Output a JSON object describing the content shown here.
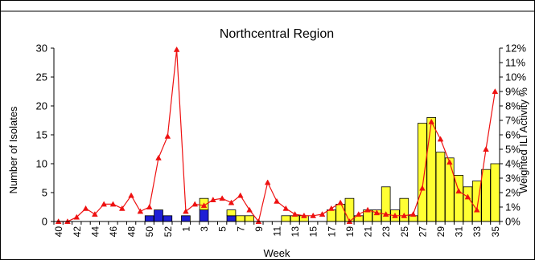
{
  "chart_data": {
    "type": "bar",
    "title": "Northcentral Region",
    "xlabel": "Week",
    "ylabel": "Number of Isolates",
    "y2label": "Weighted ILI Activity %",
    "ylim": [
      0,
      30
    ],
    "y2lim": [
      0,
      12
    ],
    "y_ticks": [
      "0",
      "5",
      "10",
      "15",
      "20",
      "25",
      "30"
    ],
    "y2_ticks": [
      "0%",
      "1%",
      "2%",
      "3%",
      "4%",
      "5%",
      "6%",
      "7%",
      "8%",
      "9%",
      "10%",
      "11%",
      "12%"
    ],
    "grid": false,
    "legend": "none",
    "categories": [
      "40",
      "41",
      "42",
      "43",
      "44",
      "45",
      "46",
      "47",
      "48",
      "49",
      "50",
      "51",
      "52",
      "53",
      "1",
      "2",
      "3",
      "4",
      "5",
      "6",
      "7",
      "8",
      "9",
      "10",
      "11",
      "12",
      "13",
      "14",
      "15",
      "16",
      "17",
      "18",
      "19",
      "20",
      "21",
      "22",
      "23",
      "24",
      "25",
      "26",
      "27",
      "28",
      "29",
      "30",
      "31",
      "32",
      "33",
      "34",
      "35"
    ],
    "series": [
      {
        "kind": "bar-stack",
        "color": "#1f1fd6",
        "values": [
          0,
          0,
          0,
          0,
          0,
          0,
          0,
          0,
          0,
          0,
          1,
          2,
          1,
          0,
          1,
          0,
          2,
          0,
          0,
          1,
          0,
          0,
          0,
          0,
          0,
          0,
          0,
          0,
          0,
          0,
          0,
          0,
          0,
          0,
          0,
          0,
          0,
          0,
          0,
          0,
          0,
          0,
          0,
          0,
          0,
          0,
          0,
          0,
          0
        ]
      },
      {
        "kind": "bar-stack",
        "color": "#ffff33",
        "values": [
          0,
          0,
          0,
          0,
          0,
          0,
          0,
          0,
          0,
          0,
          0,
          0,
          0,
          0,
          0,
          0,
          2,
          0,
          0,
          1,
          1,
          1,
          0,
          0,
          0,
          1,
          1,
          1,
          0,
          0,
          2,
          3,
          4,
          1,
          2,
          2,
          6,
          2,
          4,
          1,
          17,
          18,
          12,
          11,
          8,
          6,
          7,
          9,
          10
        ]
      },
      {
        "kind": "line",
        "axis": "right",
        "color": "#ee1111",
        "values": [
          0,
          0,
          0.3,
          0.9,
          0.5,
          1.2,
          1.2,
          0.9,
          1.8,
          0.7,
          1.0,
          4.4,
          5.9,
          11.9,
          0.7,
          1.2,
          1.1,
          1.5,
          1.6,
          1.3,
          1.8,
          0.8,
          0,
          2.7,
          1.4,
          0.9,
          0.5,
          0.4,
          0.4,
          0.5,
          0.9,
          1.3,
          0,
          0.5,
          0.8,
          0.6,
          0.5,
          0.4,
          0.4,
          0.5,
          2.3,
          6.9,
          5.7,
          4.1,
          2.1,
          1.7,
          0.8,
          5.0,
          9.0
        ]
      }
    ]
  }
}
